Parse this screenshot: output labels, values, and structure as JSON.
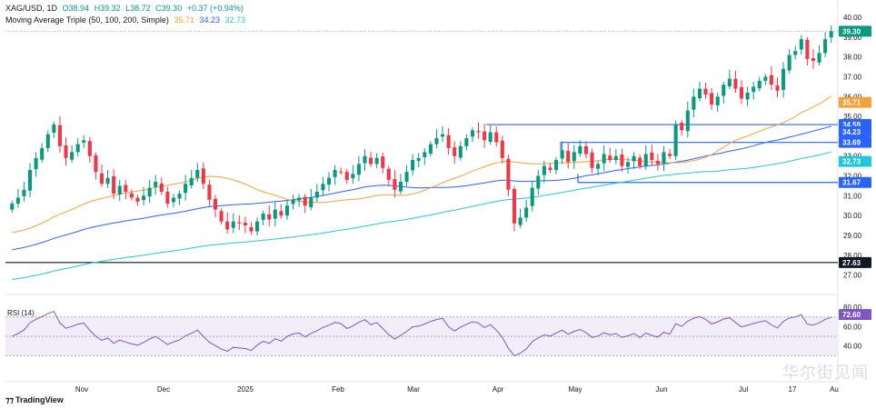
{
  "header": {
    "symbol": "XAG/USD, 1D",
    "open": "O38.94",
    "high": "H39.32",
    "low": "L38.72",
    "close": "C39.30",
    "change": "+0.37 (+0.94%)",
    "ma_label": "Moving Average Triple (50, 100, 200, Simple)",
    "ma50": "35.71",
    "ma100": "34.23",
    "ma200": "32.73"
  },
  "brand": "TradingView",
  "watermark": "华尔街见闻",
  "colors": {
    "up": "#089981",
    "down": "#f23645",
    "ma50": "#f7a13b",
    "ma100": "#2962ff",
    "ma200": "#26c6da",
    "rsi": "#7e57c2",
    "hline": "#2962ff"
  },
  "chart_data": [
    {
      "type": "candlestick",
      "y_ticks": [
        "40.00",
        "39.00",
        "38.00",
        "37.00",
        "36.00",
        "35.00",
        "34.00",
        "33.00",
        "32.00",
        "31.00",
        "30.00",
        "29.00",
        "28.00",
        "27.00"
      ],
      "ylim": [
        26.2,
        40.6
      ],
      "x_labels": [
        "Nov",
        "Dec",
        "2025",
        "Feb",
        "Mar",
        "Apr",
        "May",
        "Jun",
        "Jul",
        "17",
        "Au"
      ],
      "close_series": [
        30.6,
        30.9,
        31.3,
        32.3,
        32.9,
        33.4,
        34.1,
        34.6,
        33.5,
        32.9,
        33.2,
        33.6,
        33.8,
        33.0,
        32.2,
        31.6,
        31.9,
        31.1,
        31.5,
        31.2,
        30.9,
        30.7,
        31.0,
        31.4,
        31.7,
        31.2,
        30.6,
        30.9,
        31.1,
        31.6,
        31.9,
        32.3,
        31.6,
        30.8,
        30.3,
        29.7,
        29.3,
        29.7,
        29.6,
        29.5,
        29.2,
        29.7,
        30.1,
        29.8,
        30.3,
        30.0,
        30.5,
        30.8,
        30.9,
        30.5,
        30.9,
        31.2,
        31.6,
        31.9,
        32.3,
        32.2,
        31.8,
        32.1,
        32.6,
        33.0,
        32.6,
        32.9,
        32.4,
        31.8,
        31.3,
        31.7,
        32.2,
        32.8,
        32.9,
        33.2,
        33.6,
        33.9,
        34.1,
        33.4,
        33.0,
        33.5,
        33.9,
        34.3,
        34.2,
        33.8,
        34.2,
        33.7,
        32.9,
        31.3,
        29.6,
        29.9,
        30.4,
        31.4,
        32.0,
        32.5,
        32.3,
        32.8,
        33.3,
        32.7,
        33.2,
        33.5,
        33.1,
        32.4,
        32.6,
        33.1,
        32.8,
        33.0,
        32.5,
        32.7,
        33.0,
        32.5,
        33.1,
        32.8,
        32.6,
        33.2,
        33.0,
        34.6,
        34.3,
        35.3,
        36.0,
        36.4,
        36.1,
        35.6,
        36.0,
        36.6,
        36.9,
        36.4,
        35.9,
        36.2,
        36.5,
        36.8,
        37.0,
        36.6,
        36.3,
        37.4,
        38.1,
        38.3,
        38.9,
        37.9,
        37.8,
        38.2,
        38.9,
        39.3
      ],
      "hlines": [
        34.59,
        33.69,
        31.67,
        27.63
      ],
      "price_tags": [
        {
          "value": "39.30",
          "level": 39.3,
          "color": "#089981"
        },
        {
          "value": "35.71",
          "level": 35.71,
          "color": "#f7a13b"
        },
        {
          "value": "34.59",
          "level": 34.59,
          "color": "#2962ff"
        },
        {
          "value": "34.23",
          "level": 34.23,
          "color": "#2962ff"
        },
        {
          "value": "33.69",
          "level": 33.69,
          "color": "#2962ff"
        },
        {
          "value": "32.73",
          "level": 32.73,
          "color": "#26c6da"
        },
        {
          "value": "31.67",
          "level": 31.67,
          "color": "#2962ff"
        },
        {
          "value": "27.63",
          "level": 27.63,
          "color": "#131722"
        }
      ]
    },
    {
      "type": "line",
      "title": "RSI (14)",
      "value": "72.60",
      "y_ticks": [
        "80.00",
        "60.00",
        "40.00"
      ],
      "ylim": [
        20,
        82
      ],
      "band": [
        30,
        70
      ],
      "midline": 50
    }
  ]
}
